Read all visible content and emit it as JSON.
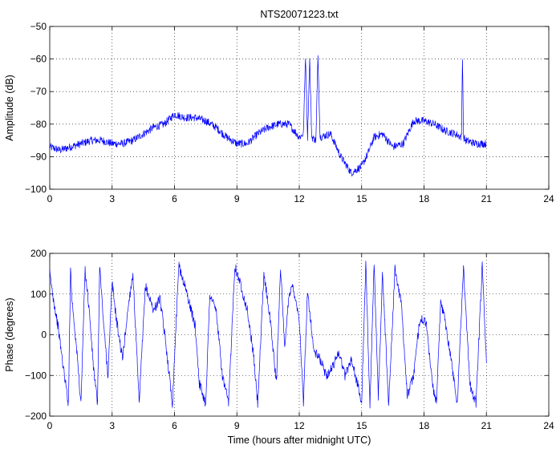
{
  "chart_data": [
    {
      "type": "line",
      "title": "NTS20071223.txt",
      "xlabel": "",
      "ylabel": "Amplitude (dB)",
      "xlim": [
        0,
        24
      ],
      "ylim": [
        -100,
        -50
      ],
      "xticks": [
        0,
        3,
        6,
        9,
        12,
        15,
        18,
        21,
        24
      ],
      "yticks": [
        -100,
        -90,
        -80,
        -70,
        -60,
        -50
      ],
      "grid": true,
      "color": "#0000ff",
      "series": [
        {
          "x": [
            0,
            0.5,
            1,
            1.5,
            2,
            2.5,
            3,
            3.5,
            4,
            4.5,
            5,
            5.5,
            6,
            6.5,
            7,
            7.5,
            8,
            8.5,
            9,
            9.5,
            10,
            10.5,
            11,
            11.5,
            12,
            12.2,
            12.3,
            12.4,
            12.5,
            12.6,
            12.8,
            12.9,
            13,
            13.5,
            14,
            14.5,
            15,
            15.3,
            15.6,
            16,
            16.5,
            17,
            17.5,
            18,
            18.5,
            19,
            19.5,
            19.8,
            19.85,
            19.9,
            20,
            20.5,
            21
          ],
          "y": [
            -87,
            -88,
            -87,
            -86,
            -85,
            -85,
            -86,
            -86,
            -85,
            -83,
            -81,
            -80,
            -77,
            -78,
            -78,
            -79,
            -81,
            -84,
            -86,
            -86,
            -83,
            -81,
            -80,
            -80,
            -84,
            -83,
            -59,
            -84,
            -60,
            -84,
            -85,
            -59,
            -84,
            -83,
            -90,
            -95,
            -93,
            -89,
            -84,
            -83,
            -87,
            -86,
            -79,
            -79,
            -80,
            -82,
            -83,
            -84,
            -59,
            -84,
            -85,
            -86,
            -86
          ]
        }
      ]
    },
    {
      "type": "line",
      "title": "",
      "xlabel": "Time (hours after midnight UTC)",
      "ylabel": "Phase (degrees)",
      "xlim": [
        0,
        24
      ],
      "ylim": [
        -200,
        200
      ],
      "xticks": [
        0,
        3,
        6,
        9,
        12,
        15,
        18,
        21,
        24
      ],
      "yticks": [
        -200,
        -100,
        0,
        100,
        200
      ],
      "grid": true,
      "color": "#0000ff",
      "series": [
        {
          "x": [
            0,
            0.2,
            0.4,
            0.6,
            0.9,
            1.0,
            1.05,
            1.3,
            1.5,
            1.7,
            1.9,
            2.1,
            2.3,
            2.4,
            2.6,
            2.8,
            3.0,
            3.2,
            3.5,
            3.8,
            4.0,
            4.3,
            4.6,
            5.0,
            5.3,
            5.6,
            5.9,
            6.2,
            6.5,
            6.8,
            7.0,
            7.2,
            7.5,
            7.7,
            8.0,
            8.3,
            8.6,
            8.9,
            9.2,
            9.5,
            9.8,
            10.0,
            10.3,
            10.6,
            10.9,
            11.1,
            11.3,
            11.5,
            11.7,
            12.0,
            12.2,
            12.4,
            12.7,
            13.0,
            13.3,
            13.6,
            13.9,
            14.2,
            14.5,
            14.8,
            15.0,
            15.2,
            15.4,
            15.6,
            15.8,
            16.0,
            16.3,
            16.6,
            16.9,
            17.2,
            17.5,
            17.8,
            18.1,
            18.4,
            18.6,
            18.8,
            19.0,
            19.3,
            19.6,
            19.9,
            20.2,
            20.5,
            20.8,
            21.0
          ],
          "y": [
            150,
            80,
            20,
            -60,
            -170,
            170,
            100,
            -40,
            -170,
            160,
            60,
            -80,
            -170,
            170,
            20,
            -100,
            130,
            40,
            -60,
            80,
            150,
            -170,
            120,
            60,
            90,
            -30,
            -170,
            170,
            120,
            60,
            20,
            -120,
            -170,
            100,
            60,
            -100,
            -170,
            170,
            120,
            60,
            -50,
            -170,
            150,
            40,
            -120,
            170,
            -40,
            100,
            120,
            40,
            -170,
            110,
            -40,
            -60,
            -100,
            -80,
            -40,
            -100,
            -60,
            -120,
            -170,
            170,
            -170,
            170,
            -160,
            150,
            -170,
            160,
            80,
            -150,
            -100,
            40,
            30,
            -120,
            -170,
            80,
            40,
            -60,
            -170,
            170,
            -120,
            -170,
            170,
            -70
          ]
        }
      ]
    }
  ]
}
